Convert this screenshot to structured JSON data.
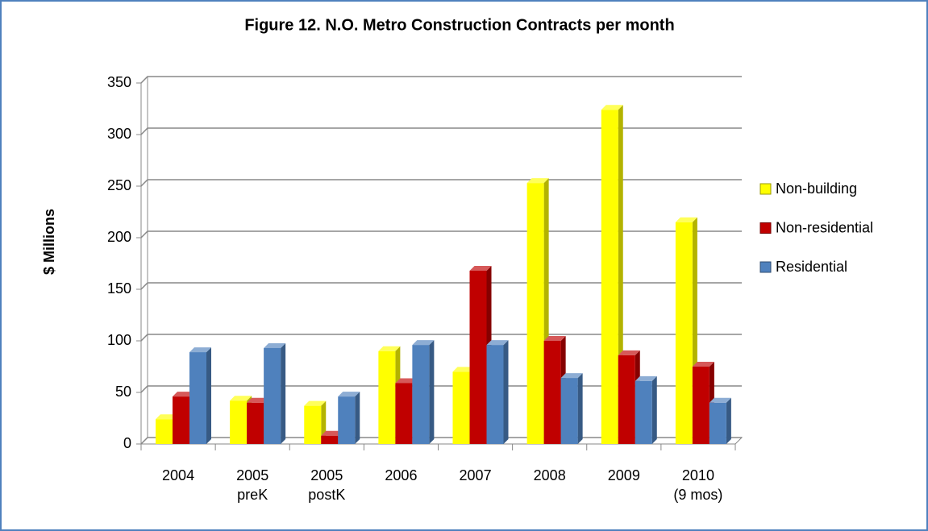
{
  "chart_data": {
    "type": "bar3d",
    "title": "Figure 12.  N.O. Metro Construction Contracts per month",
    "ylabel": "$ Millions",
    "categories": [
      "2004",
      "2005\npreK",
      "2005\npostK",
      "2006",
      "2007",
      "2008",
      "2009",
      "2010\n(9 mos)"
    ],
    "series": [
      {
        "name": "Non-building",
        "color": "#ffff00",
        "values": [
          24,
          42,
          37,
          90,
          70,
          253,
          324,
          215
        ]
      },
      {
        "name": "Non-residential",
        "color": "#c00000",
        "values": [
          46,
          40,
          8,
          59,
          168,
          100,
          86,
          75
        ]
      },
      {
        "name": "Residential",
        "color": "#4f81bd",
        "values": [
          89,
          93,
          46,
          96,
          96,
          64,
          61,
          40
        ]
      }
    ],
    "ylim": [
      0,
      350
    ],
    "yticks": [
      0,
      50,
      100,
      150,
      200,
      250,
      300,
      350
    ],
    "grid": true,
    "legend": "right"
  }
}
